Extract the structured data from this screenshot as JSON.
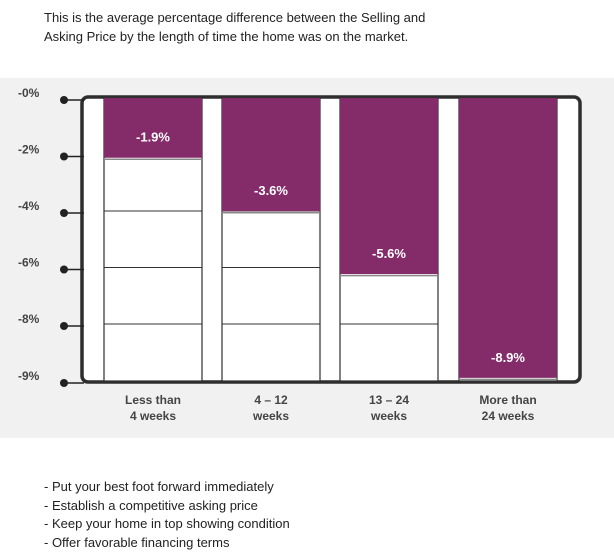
{
  "intro": {
    "line1": "This is the average percentage difference between the Selling and",
    "line2": "Asking Price by the length of time the home was on the market."
  },
  "chart_data": {
    "type": "bar",
    "title": "",
    "xlabel": "",
    "ylabel": "",
    "categories": [
      [
        "Less than",
        "4 weeks"
      ],
      [
        "4 – 12",
        "weeks"
      ],
      [
        "13 – 24",
        "weeks"
      ],
      [
        "More than",
        "24 weeks"
      ]
    ],
    "values": [
      -1.9,
      -3.6,
      -5.6,
      -8.9
    ],
    "data_labels": [
      "-1.9%",
      "-3.6%",
      "-5.6%",
      "-8.9%"
    ],
    "y_ticks": [
      {
        "label": "-0%",
        "value": 0
      },
      {
        "label": "-2%",
        "value": -2
      },
      {
        "label": "-4%",
        "value": -4
      },
      {
        "label": "-6%",
        "value": -6
      },
      {
        "label": "-8%",
        "value": -8
      },
      {
        "label": "-9%",
        "value": -9
      }
    ],
    "ylim": [
      -9,
      0
    ],
    "grid": true,
    "bar_color": "#842b6a",
    "frame_color": "#2e2e2e",
    "background_color": "#f1f1f1"
  },
  "tips": [
    "- Put your best foot forward immediately",
    "- Establish a competitive asking price",
    "- Keep your home in top showing condition",
    "- Offer favorable financing terms"
  ]
}
